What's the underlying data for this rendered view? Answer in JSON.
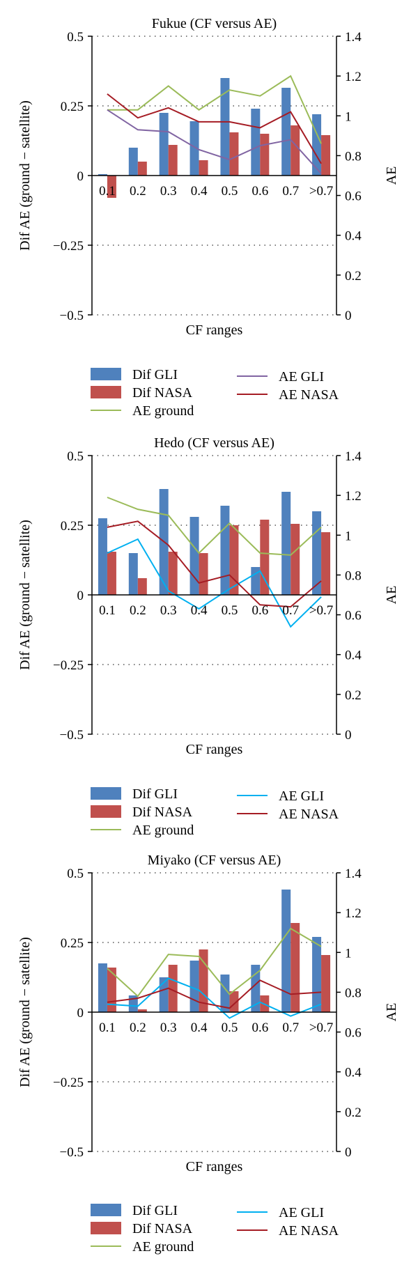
{
  "figure": {
    "colors": {
      "dif_gli": "#4f81bd",
      "dif_nasa": "#c0504d",
      "ae_ground": "#9bbb59",
      "ae_nasa": "#a51c24",
      "axis": "#000000",
      "grid": "#555555"
    }
  },
  "chart_data": [
    {
      "type": "bar",
      "title": "Fukue (CF versus AE)",
      "xlabel": "CF ranges",
      "ylabel": "Dif AE (ground − satellite)",
      "y2label": "AE",
      "ylim": [
        -0.5,
        0.5
      ],
      "y2lim": [
        0,
        1.4
      ],
      "yticks": [
        "0.5",
        "0.25",
        "0",
        "−0.25",
        "−0.5"
      ],
      "y2ticks": [
        "1.4",
        "1.2",
        "1",
        "0.8",
        "0.6",
        "0.4",
        "0.2",
        "0"
      ],
      "grid": "dotted horizontal",
      "categories": [
        "0.1",
        "0.2",
        "0.3",
        "0.4",
        "0.5",
        "0.6",
        "0.7",
        ">0.7"
      ],
      "series": [
        {
          "name": "Dif GLI",
          "kind": "bar",
          "axis": "left",
          "color": "#4f81bd",
          "values": [
            0.005,
            0.1,
            0.225,
            0.195,
            0.35,
            0.24,
            0.315,
            0.22
          ]
        },
        {
          "name": "Dif NASA",
          "kind": "bar",
          "axis": "left",
          "color": "#c0504d",
          "values": [
            -0.08,
            0.05,
            0.11,
            0.055,
            0.155,
            0.15,
            0.18,
            0.145
          ]
        },
        {
          "name": "AE ground",
          "kind": "line",
          "axis": "right",
          "color": "#9bbb59",
          "values": [
            1.03,
            1.03,
            1.15,
            1.03,
            1.13,
            1.1,
            1.2,
            0.86
          ]
        },
        {
          "name": "AE GLI",
          "kind": "line",
          "axis": "right",
          "color": "#8064a2",
          "values": [
            1.03,
            0.93,
            0.92,
            0.83,
            0.78,
            0.85,
            0.88,
            0.71
          ]
        },
        {
          "name": "AE NASA",
          "kind": "line",
          "axis": "right",
          "color": "#a51c24",
          "values": [
            1.11,
            0.99,
            1.04,
            0.97,
            0.97,
            0.94,
            1.02,
            0.76
          ]
        }
      ],
      "legend": [
        "Dif GLI",
        "Dif NASA",
        "AE ground",
        "AE GLI",
        "AE NASA"
      ],
      "legend_placement": "below"
    },
    {
      "type": "bar",
      "title": "Hedo (CF versus AE)",
      "xlabel": "CF ranges",
      "ylabel": "Dif AE (ground − satellite)",
      "y2label": "AE",
      "ylim": [
        -0.5,
        0.5
      ],
      "y2lim": [
        0,
        1.4
      ],
      "yticks": [
        "0.5",
        "0.25",
        "0",
        "−0.25",
        "−0.5"
      ],
      "y2ticks": [
        "1.4",
        "1.2",
        "1",
        "0.8",
        "0.6",
        "0.4",
        "0.2",
        "0"
      ],
      "grid": "dotted horizontal",
      "categories": [
        "0.1",
        "0.2",
        "0.3",
        "0.4",
        "0.5",
        "0.6",
        "0.7",
        ">0.7"
      ],
      "series": [
        {
          "name": "Dif GLI",
          "kind": "bar",
          "axis": "left",
          "color": "#4f81bd",
          "values": [
            0.275,
            0.15,
            0.38,
            0.28,
            0.32,
            0.1,
            0.37,
            0.3
          ]
        },
        {
          "name": "Dif NASA",
          "kind": "bar",
          "axis": "left",
          "color": "#c0504d",
          "values": [
            0.155,
            0.06,
            0.155,
            0.15,
            0.25,
            0.27,
            0.255,
            0.225
          ]
        },
        {
          "name": "AE ground",
          "kind": "line",
          "axis": "right",
          "color": "#9bbb59",
          "values": [
            1.19,
            1.13,
            1.1,
            0.91,
            1.06,
            0.91,
            0.9,
            1.04
          ]
        },
        {
          "name": "AE GLI",
          "kind": "line",
          "axis": "right",
          "color": "#00b0f0",
          "values": [
            0.91,
            0.98,
            0.72,
            0.63,
            0.73,
            0.82,
            0.54,
            0.69
          ]
        },
        {
          "name": "AE NASA",
          "kind": "line",
          "axis": "right",
          "color": "#a51c24",
          "values": [
            1.04,
            1.07,
            0.95,
            0.76,
            0.8,
            0.65,
            0.64,
            0.77
          ]
        }
      ],
      "legend": [
        "Dif GLI",
        "Dif NASA",
        "AE ground",
        "AE GLI",
        "AE NASA"
      ],
      "legend_placement": "below"
    },
    {
      "type": "bar",
      "title": "Miyako (CF versus AE)",
      "xlabel": "CF ranges",
      "ylabel": "Dif AE (ground − satellite)",
      "y2label": "AE",
      "ylim": [
        -0.5,
        0.5
      ],
      "y2lim": [
        0,
        1.4
      ],
      "yticks": [
        "0.5",
        "0.25",
        "0",
        "−0.25",
        "−0.5"
      ],
      "y2ticks": [
        "1.4",
        "1.2",
        "1",
        "0.8",
        "0.6",
        "0.4",
        "0.2",
        "0"
      ],
      "grid": "dotted horizontal",
      "categories": [
        "0.1",
        "0.2",
        "0.3",
        "0.4",
        "0.5",
        "0.6",
        "0.7",
        ">0.7"
      ],
      "series": [
        {
          "name": "Dif GLI",
          "kind": "bar",
          "axis": "left",
          "color": "#4f81bd",
          "values": [
            0.175,
            0.06,
            0.125,
            0.185,
            0.135,
            0.17,
            0.44,
            0.27
          ]
        },
        {
          "name": "Dif NASA",
          "kind": "bar",
          "axis": "left",
          "color": "#c0504d",
          "values": [
            0.16,
            0.01,
            0.17,
            0.225,
            0.075,
            0.06,
            0.32,
            0.205
          ]
        },
        {
          "name": "AE ground",
          "kind": "line",
          "axis": "right",
          "color": "#9bbb59",
          "values": [
            0.92,
            0.78,
            0.99,
            0.98,
            0.79,
            0.91,
            1.12,
            1.03
          ]
        },
        {
          "name": "AE GLI",
          "kind": "line",
          "axis": "right",
          "color": "#00b0f0",
          "values": [
            0.74,
            0.73,
            0.87,
            0.81,
            0.67,
            0.75,
            0.68,
            0.74
          ]
        },
        {
          "name": "AE NASA",
          "kind": "line",
          "axis": "right",
          "color": "#a51c24",
          "values": [
            0.75,
            0.77,
            0.82,
            0.75,
            0.72,
            0.86,
            0.79,
            0.8
          ]
        }
      ],
      "legend": [
        "Dif GLI",
        "Dif NASA",
        "AE ground",
        "AE GLI",
        "AE NASA"
      ],
      "legend_placement": "below"
    }
  ]
}
